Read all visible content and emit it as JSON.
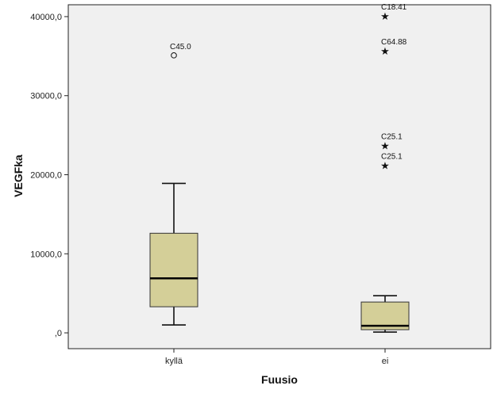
{
  "chart_data": {
    "type": "boxplot",
    "xlabel": "Fuusio",
    "ylabel": "VEGFka",
    "ylim": [
      -2000,
      41500
    ],
    "yticks": [
      {
        "value": 0,
        "label": ",0"
      },
      {
        "value": 10000,
        "label": "10000,0"
      },
      {
        "value": 20000,
        "label": "20000,0"
      },
      {
        "value": 30000,
        "label": "30000,0"
      },
      {
        "value": 40000,
        "label": "40000,0"
      }
    ],
    "categories": [
      "kyllä",
      "ei"
    ],
    "boxes": [
      {
        "category": "kyllä",
        "whisker_low": 1000,
        "q1": 3300,
        "median": 6900,
        "q3": 12600,
        "whisker_high": 18900,
        "outliers": [
          {
            "value": 35100,
            "label": "C45.0",
            "marker": "circle"
          }
        ]
      },
      {
        "category": "ei",
        "whisker_low": 100,
        "q1": 400,
        "median": 900,
        "q3": 3900,
        "whisker_high": 4700,
        "outliers": [
          {
            "value": 40100,
            "label": "C18.41",
            "marker": "star"
          },
          {
            "value": 35700,
            "label": "C64.88",
            "marker": "star"
          },
          {
            "value": 23700,
            "label": "C25.1",
            "marker": "star"
          },
          {
            "value": 21200,
            "label": "C25.1",
            "marker": "star"
          }
        ]
      }
    ],
    "box_color": "#d4cf98",
    "plot_background": "#f0f0f0",
    "grid": false,
    "legend": "none"
  }
}
